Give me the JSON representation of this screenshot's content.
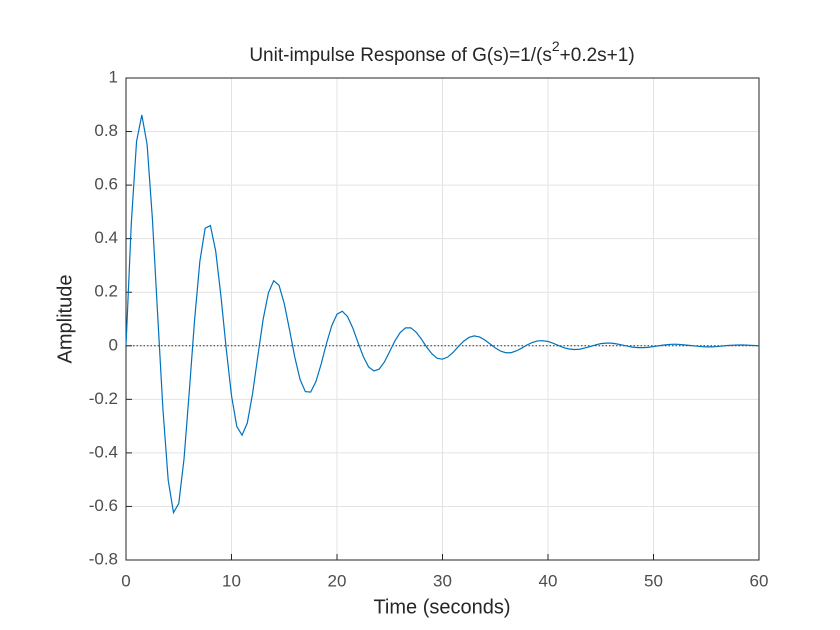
{
  "chart_data": {
    "type": "line",
    "title": [
      "Unit-impulse Response of G(s)=1/(s",
      "2",
      "+0.2s+1)"
    ],
    "x_label": "Time (seconds)",
    "y_label": "Amplitude",
    "xlim": [
      0,
      60
    ],
    "ylim": [
      -0.8,
      1
    ],
    "xticks": [
      0,
      10,
      20,
      30,
      40,
      50,
      60
    ],
    "yticks": [
      -0.8,
      -0.6,
      -0.4,
      -0.2,
      0,
      0.2,
      0.4,
      0.6,
      0.8,
      1
    ],
    "grid": true,
    "x": [
      0,
      0.5,
      1,
      1.5,
      2,
      2.5,
      3,
      3.5,
      4,
      4.5,
      5,
      5.5,
      6,
      6.5,
      7,
      7.5,
      8,
      8.5,
      9,
      9.5,
      10,
      10.5,
      11,
      11.5,
      12,
      12.5,
      13,
      13.5,
      14,
      14.5,
      15,
      15.5,
      16,
      16.5,
      17,
      17.5,
      18,
      18.5,
      19,
      19.5,
      20,
      20.5,
      21,
      21.5,
      22,
      22.5,
      23,
      23.5,
      24,
      24.5,
      25,
      25.5,
      26,
      26.5,
      27,
      27.5,
      28,
      28.5,
      29,
      29.5,
      30,
      30.5,
      31,
      31.5,
      32,
      32.5,
      33,
      33.5,
      34,
      34.5,
      35,
      35.5,
      36,
      36.5,
      37,
      37.5,
      38,
      38.5,
      39,
      39.5,
      40,
      40.5,
      41,
      41.5,
      42,
      42.5,
      43,
      43.5,
      44,
      44.5,
      45,
      45.5,
      46,
      46.5,
      47,
      47.5,
      48,
      48.5,
      49,
      49.5,
      50,
      50.5,
      51,
      51.5,
      52,
      52.5,
      53,
      53.5,
      54,
      54.5,
      55,
      55.5,
      56,
      56.5,
      57,
      57.5,
      58,
      58.5,
      59,
      59.5,
      60
    ],
    "series": [
      {
        "color": "#0072bd",
        "values": [
          0,
          0.456,
          0.763,
          0.862,
          0.752,
          0.475,
          0.116,
          -0.237,
          -0.502,
          -0.623,
          -0.589,
          -0.422,
          -0.17,
          0.096,
          0.315,
          0.439,
          0.449,
          0.354,
          0.185,
          -0.011,
          -0.186,
          -0.301,
          -0.334,
          -0.288,
          -0.178,
          -0.037,
          0.099,
          0.198,
          0.243,
          0.226,
          0.158,
          0.06,
          -0.043,
          -0.126,
          -0.171,
          -0.173,
          -0.134,
          -0.068,
          0.008,
          0.075,
          0.118,
          0.129,
          0.109,
          0.066,
          0.011,
          -0.041,
          -0.079,
          -0.094,
          -0.087,
          -0.06,
          -0.021,
          0.019,
          0.05,
          0.067,
          0.067,
          0.051,
          0.025,
          -0.005,
          -0.03,
          -0.047,
          -0.05,
          -0.042,
          -0.025,
          -0.003,
          0.017,
          0.031,
          0.037,
          0.033,
          0.022,
          0.007,
          -0.008,
          -0.02,
          -0.026,
          -0.026,
          -0.019,
          -0.009,
          0.003,
          0.012,
          0.018,
          0.019,
          0.016,
          0.009,
          0.001,
          -0.007,
          -0.012,
          -0.014,
          -0.013,
          -0.008,
          -0.003,
          0.003,
          0.008,
          0.01,
          0.01,
          0.007,
          0.003,
          -0.001,
          -0.005,
          -0.007,
          -0.007,
          -0.006,
          -0.003,
          0,
          0.003,
          0.005,
          0.006,
          0.005,
          0.003,
          0.001,
          -0.001,
          -0.003,
          -0.004,
          -0.004,
          -0.003,
          -0.001,
          0.001,
          0.002,
          0.003,
          0.003,
          0.002,
          0.001,
          0
        ]
      }
    ]
  }
}
